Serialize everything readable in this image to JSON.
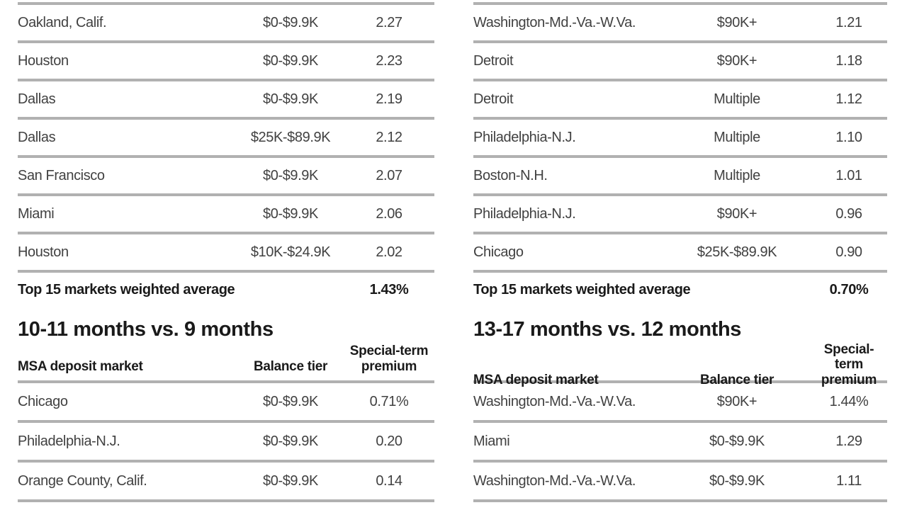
{
  "page": {
    "background_color": "#ffffff",
    "rule_color": "#b1b1b1",
    "text_color": "#414141",
    "bold_text_color": "#1a1a1a"
  },
  "column_headers": {
    "market": "MSA deposit market",
    "tier": "Balance tier",
    "premium": "Special-term\npremium"
  },
  "tables": {
    "top_left": {
      "rows": [
        {
          "market": "Oakland, Calif.",
          "tier": "$0-$9.9K",
          "premium": "2.27"
        },
        {
          "market": "Houston",
          "tier": "$0-$9.9K",
          "premium": "2.23"
        },
        {
          "market": "Dallas",
          "tier": "$0-$9.9K",
          "premium": "2.19"
        },
        {
          "market": "Dallas",
          "tier": "$25K-$89.9K",
          "premium": "2.12"
        },
        {
          "market": "San Francisco",
          "tier": "$0-$9.9K",
          "premium": "2.07"
        },
        {
          "market": "Miami",
          "tier": "$0-$9.9K",
          "premium": "2.06"
        },
        {
          "market": "Houston",
          "tier": "$10K-$24.9K",
          "premium": "2.02"
        }
      ],
      "summary": {
        "label": "Top 15 markets weighted average",
        "value": "1.43%"
      }
    },
    "top_right": {
      "rows": [
        {
          "market": "Washington-Md.-Va.-W.Va.",
          "tier": "$90K+",
          "premium": "1.21"
        },
        {
          "market": "Detroit",
          "tier": "$90K+",
          "premium": "1.18"
        },
        {
          "market": "Detroit",
          "tier": "Multiple",
          "premium": "1.12"
        },
        {
          "market": "Philadelphia-N.J.",
          "tier": "Multiple",
          "premium": "1.10"
        },
        {
          "market": "Boston-N.H.",
          "tier": "Multiple",
          "premium": "1.01"
        },
        {
          "market": "Philadelphia-N.J.",
          "tier": "$90K+",
          "premium": "0.96"
        },
        {
          "market": "Chicago",
          "tier": "$25K-$89.9K",
          "premium": "0.90"
        }
      ],
      "summary": {
        "label": "Top 15 markets weighted average",
        "value": "0.70%"
      }
    },
    "bottom_left": {
      "title": "10-11 months vs. 9 months",
      "rows": [
        {
          "market": "Chicago",
          "tier": "$0-$9.9K",
          "premium": "0.71%"
        },
        {
          "market": "Philadelphia-N.J.",
          "tier": "$0-$9.9K",
          "premium": "0.20"
        },
        {
          "market": "Orange County, Calif.",
          "tier": "$0-$9.9K",
          "premium": "0.14"
        }
      ]
    },
    "bottom_right": {
      "title": "13-17 months vs. 12 months",
      "rows": [
        {
          "market": "Washington-Md.-Va.-W.Va.",
          "tier": "$90K+",
          "premium": "1.44%"
        },
        {
          "market": "Miami",
          "tier": "$0-$9.9K",
          "premium": "1.29"
        },
        {
          "market": "Washington-Md.-Va.-W.Va.",
          "tier": "$0-$9.9K",
          "premium": "1.11"
        }
      ]
    }
  }
}
